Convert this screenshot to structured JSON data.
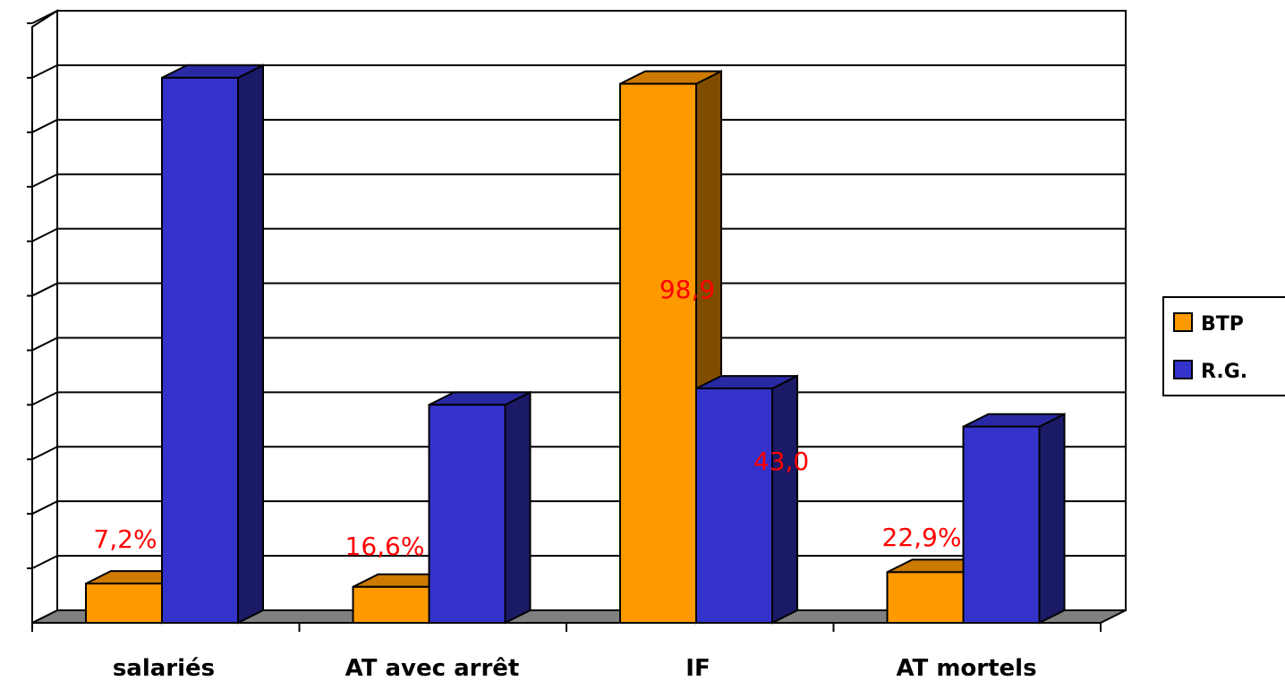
{
  "chart_data": {
    "type": "bar",
    "categories": [
      "salariés",
      "AT avec arrêt",
      "IF",
      "AT mortels"
    ],
    "series": [
      {
        "name": "BTP",
        "color": "#ff9900",
        "values": [
          7.2,
          6.6,
          98.9,
          9.3
        ]
      },
      {
        "name": "R.G.",
        "color": "#3333cc",
        "values": [
          100,
          40,
          43.0,
          36
        ]
      }
    ],
    "data_labels": [
      "7,2%",
      "16,6%",
      "98,9",
      "43,0",
      "22,9%"
    ],
    "ylim": [
      0,
      110
    ],
    "y_gridlines": 11,
    "grid": true,
    "legend": "right",
    "label_color": "#ff0000"
  }
}
